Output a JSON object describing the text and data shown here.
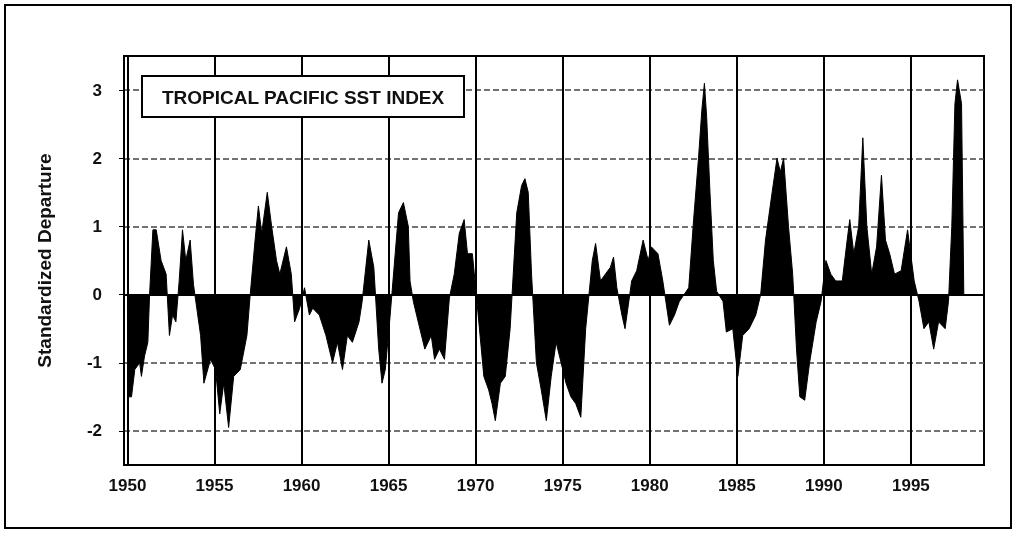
{
  "chart_data": {
    "type": "area",
    "title": "TROPICAL PACIFIC SST INDEX",
    "ylabel": "Standardized Departure",
    "x": [
      1950.0,
      1950.04,
      1950.23,
      1950.42,
      1950.7,
      1950.8,
      1950.98,
      1951.17,
      1951.27,
      1951.46,
      1951.65,
      1951.93,
      1952.22,
      1952.41,
      1952.59,
      1952.78,
      1952.97,
      1953.16,
      1953.35,
      1953.6,
      1953.79,
      1954.2,
      1954.39,
      1954.77,
      1955.06,
      1955.3,
      1955.53,
      1955.81,
      1956.1,
      1956.48,
      1956.86,
      1957.05,
      1957.33,
      1957.52,
      1957.71,
      1958.03,
      1958.28,
      1958.56,
      1958.75,
      1959.13,
      1959.41,
      1959.6,
      1959.89,
      1960.17,
      1960.45,
      1960.64,
      1961.02,
      1961.4,
      1961.78,
      1962.06,
      1962.35,
      1962.63,
      1962.92,
      1963.3,
      1963.48,
      1963.86,
      1964.15,
      1964.43,
      1964.62,
      1964.81,
      1965.09,
      1965.57,
      1965.85,
      1966.13,
      1966.23,
      1966.42,
      1966.7,
      1967.08,
      1967.45,
      1967.64,
      1967.92,
      1968.21,
      1968.49,
      1968.77,
      1969.06,
      1969.34,
      1969.53,
      1969.81,
      1970.0,
      1970.47,
      1970.75,
      1970.94,
      1971.13,
      1971.42,
      1971.7,
      1971.98,
      1972.36,
      1972.64,
      1972.83,
      1973.02,
      1973.21,
      1973.49,
      1973.77,
      1974.06,
      1974.34,
      1974.62,
      1974.91,
      1975.19,
      1975.47,
      1975.75,
      1976.04,
      1976.32,
      1976.7,
      1976.89,
      1977.17,
      1977.45,
      1977.74,
      1977.92,
      1978.11,
      1978.4,
      1978.58,
      1978.96,
      1979.25,
      1979.62,
      1979.91,
      1980.09,
      1980.47,
      1980.75,
      1981.13,
      1981.42,
      1981.7,
      1982.24,
      1982.52,
      1982.8,
      1982.99,
      1983.14,
      1983.27,
      1983.46,
      1983.65,
      1983.84,
      1984.21,
      1984.4,
      1984.77,
      1985.06,
      1985.34,
      1985.71,
      1986.09,
      1986.37,
      1986.65,
      1987.03,
      1987.31,
      1987.5,
      1987.69,
      1987.97,
      1988.21,
      1988.43,
      1988.62,
      1988.9,
      1989.18,
      1989.56,
      1989.84,
      1990.12,
      1990.4,
      1990.68,
      1991.06,
      1991.34,
      1991.49,
      1991.72,
      1992.0,
      1992.24,
      1992.47,
      1992.75,
      1993.03,
      1993.31,
      1993.54,
      1993.78,
      1994.06,
      1994.44,
      1994.81,
      1995.19,
      1995.47,
      1995.75,
      1996.03,
      1996.31,
      1996.59,
      1996.97,
      1997.16,
      1997.35,
      1997.53,
      1997.68,
      1997.91,
      1998.04
    ],
    "series": [
      {
        "color": "#000000",
        "values": [
          -0.2,
          -1.5,
          -1.5,
          -1.1,
          -1.0,
          -1.2,
          -0.9,
          -0.7,
          0.0,
          0.95,
          0.95,
          0.5,
          0.3,
          -0.6,
          -0.3,
          -0.4,
          0.2,
          0.95,
          0.5,
          0.8,
          0.15,
          -0.6,
          -1.3,
          -0.95,
          -1.1,
          -1.75,
          -1.3,
          -1.95,
          -1.2,
          -1.1,
          -0.6,
          0.0,
          0.8,
          1.3,
          0.9,
          1.5,
          1.0,
          0.5,
          0.3,
          0.7,
          0.3,
          -0.4,
          -0.2,
          0.1,
          -0.3,
          -0.2,
          -0.3,
          -0.6,
          -1.0,
          -0.7,
          -1.1,
          -0.6,
          -0.7,
          -0.4,
          -0.1,
          0.8,
          0.4,
          -0.8,
          -1.3,
          -1.1,
          -0.3,
          1.2,
          1.35,
          1.0,
          0.2,
          -0.1,
          -0.4,
          -0.8,
          -0.6,
          -0.95,
          -0.8,
          -0.95,
          -0.05,
          0.3,
          0.9,
          1.1,
          0.6,
          0.6,
          0.1,
          -1.2,
          -1.4,
          -1.6,
          -1.85,
          -1.3,
          -1.2,
          -0.5,
          1.2,
          1.6,
          1.7,
          1.5,
          0.3,
          -1.0,
          -1.4,
          -1.85,
          -1.2,
          -0.7,
          -1.0,
          -1.3,
          -1.5,
          -1.6,
          -1.8,
          -0.5,
          0.5,
          0.75,
          0.2,
          0.3,
          0.4,
          0.55,
          0.1,
          -0.3,
          -0.5,
          0.2,
          0.35,
          0.8,
          0.5,
          0.7,
          0.6,
          0.2,
          -0.45,
          -0.3,
          -0.1,
          0.1,
          1.1,
          2.0,
          2.7,
          3.1,
          2.6,
          1.5,
          0.5,
          0.05,
          -0.1,
          -0.55,
          -0.5,
          -1.2,
          -0.6,
          -0.5,
          -0.3,
          0.0,
          0.8,
          1.5,
          2.0,
          1.8,
          2.0,
          1.0,
          0.3,
          -0.8,
          -1.5,
          -1.55,
          -1.0,
          -0.4,
          -0.1,
          0.5,
          0.3,
          0.2,
          0.2,
          0.8,
          1.1,
          0.6,
          1.0,
          2.3,
          1.0,
          0.3,
          0.7,
          1.75,
          0.8,
          0.6,
          0.3,
          0.35,
          0.95,
          0.2,
          -0.1,
          -0.5,
          -0.4,
          -0.8,
          -0.4,
          -0.5,
          -0.1,
          1.0,
          2.8,
          3.15,
          2.8,
          0.0
        ]
      }
    ],
    "xlim": [
      1949.8,
      1999.2
    ],
    "xticks": [
      1950,
      1955,
      1960,
      1965,
      1970,
      1975,
      1980,
      1985,
      1990,
      1995
    ],
    "ylim": [
      -2.5,
      3.5
    ],
    "yticks": [
      -2,
      -1,
      0,
      1,
      2,
      3
    ],
    "grid": true
  }
}
